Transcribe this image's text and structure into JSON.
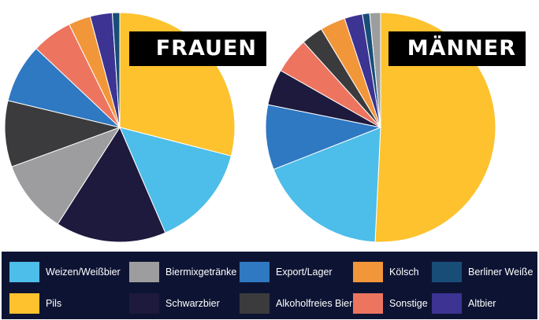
{
  "legend_items": [
    {
      "label": "Weizen/Weißbier",
      "color": "#4dbde9"
    },
    {
      "label": "Biermixgetränke",
      "color": "#9d9d9f"
    },
    {
      "label": "Export/Lager",
      "color": "#2f78c2"
    },
    {
      "label": "Kölsch",
      "color": "#f2963a"
    },
    {
      "label": "Berliner Weiße",
      "color": "#184d78"
    },
    {
      "label": "Pils",
      "color": "#fdc22e"
    },
    {
      "label": "Schwarzbier",
      "color": "#1d1a3d"
    },
    {
      "label": "Alkoholfreies Bier",
      "color": "#3b3b3d"
    },
    {
      "label": "Sonstige",
      "color": "#ed7560"
    },
    {
      "label": "Altbier",
      "color": "#3c3392"
    }
  ],
  "chart_data": [
    {
      "type": "pie",
      "title": "FRAUEN",
      "slices": [
        {
          "label": "Pils",
          "value": 28
        },
        {
          "label": "Weizen/Weißbier",
          "value": 14
        },
        {
          "label": "Schwarzbier",
          "value": 15
        },
        {
          "label": "Biermixgetränke",
          "value": 10
        },
        {
          "label": "Alkoholfreies Bier",
          "value": 9
        },
        {
          "label": "Export/Lager",
          "value": 8
        },
        {
          "label": "Sonstige",
          "value": 5.5
        },
        {
          "label": "Kölsch",
          "value": 3
        },
        {
          "label": "Altbier",
          "value": 3
        },
        {
          "label": "Berliner Weiße",
          "value": 1
        }
      ]
    },
    {
      "type": "pie",
      "title": "MÄNNER",
      "slices": [
        {
          "label": "Pils",
          "value": 50
        },
        {
          "label": "Weizen/Weißbier",
          "value": 18
        },
        {
          "label": "Export/Lager",
          "value": 9
        },
        {
          "label": "Schwarzbier",
          "value": 5
        },
        {
          "label": "Sonstige",
          "value": 5
        },
        {
          "label": "Alkoholfreies Bier",
          "value": 3
        },
        {
          "label": "Kölsch",
          "value": 3.5
        },
        {
          "label": "Altbier",
          "value": 2.5
        },
        {
          "label": "Berliner Weiße",
          "value": 1
        },
        {
          "label": "Biermixgetränke",
          "value": 1.5
        }
      ]
    }
  ]
}
